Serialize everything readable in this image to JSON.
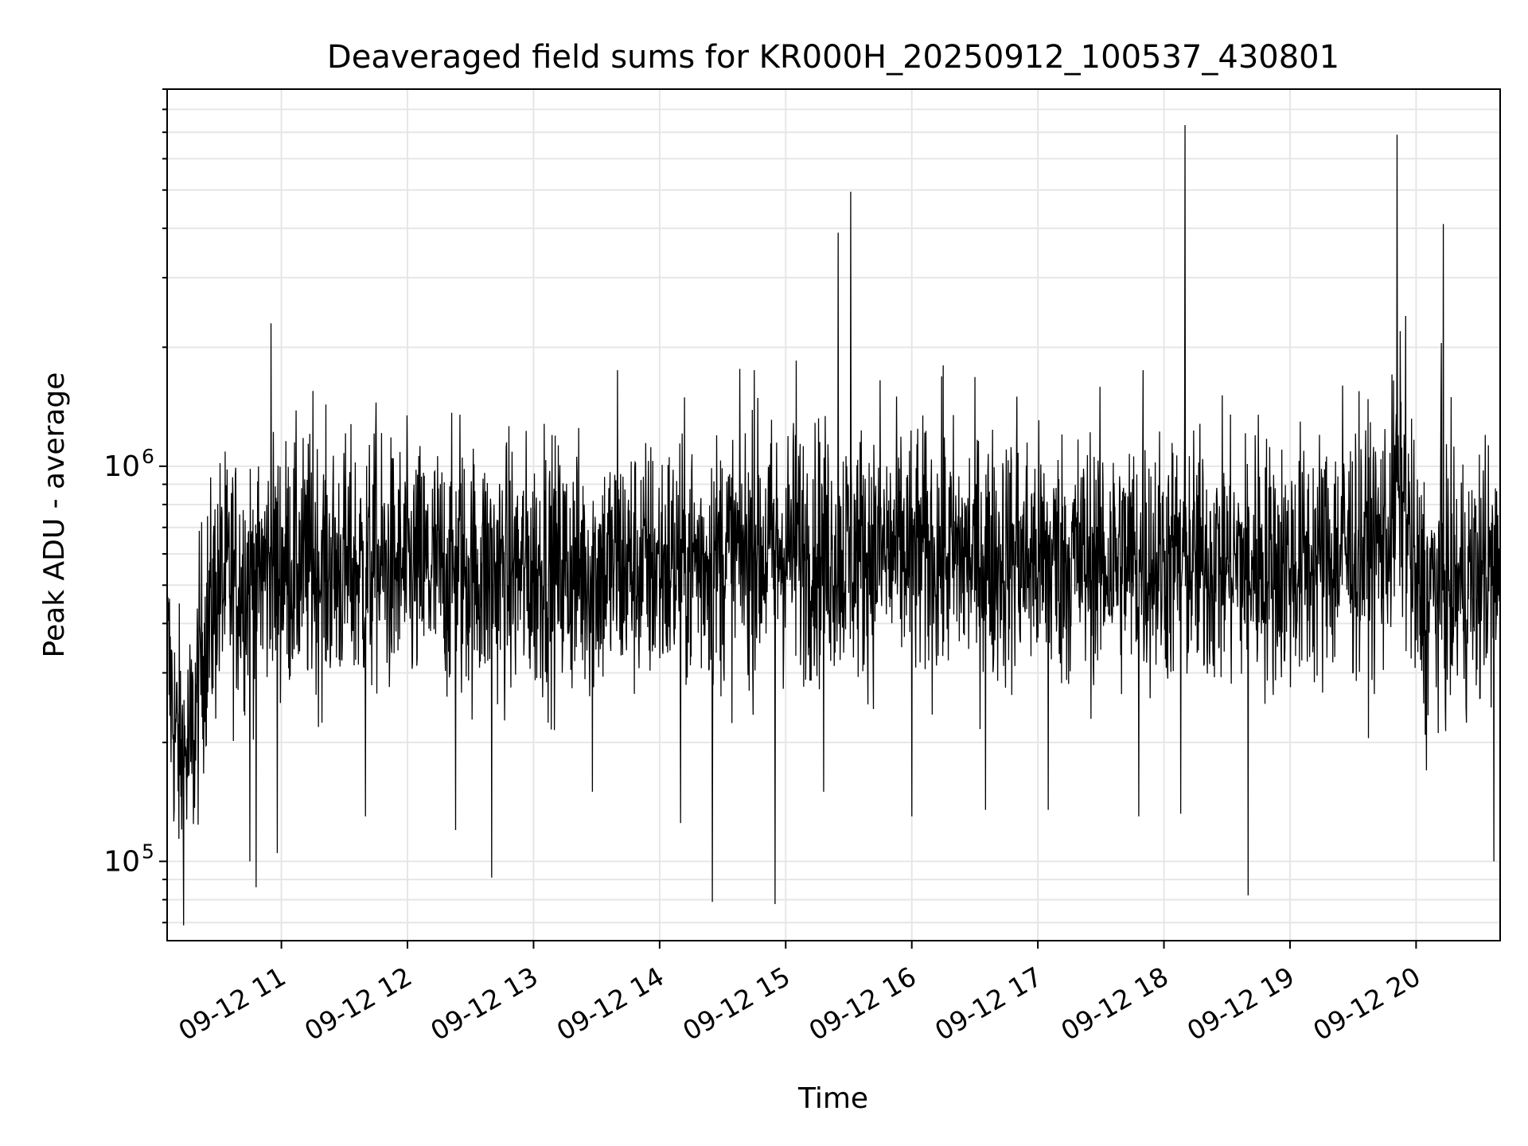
{
  "chart_data": {
    "type": "line",
    "title": "Deaveraged field sums for KR000H_20250912_100537_430801",
    "xlabel": "Time",
    "ylabel": "Peak ADU - average",
    "x_range": [
      "2025-09-12 10:05:37",
      "2025-09-12 20:40:00"
    ],
    "ylim": [
      63000,
      9000000
    ],
    "yscale": "log",
    "grid": true,
    "x_tick_labels": [
      "09-12 11",
      "09-12 12",
      "09-12 13",
      "09-12 14",
      "09-12 15",
      "09-12 16",
      "09-12 17",
      "09-12 18",
      "09-12 19",
      "09-12 20"
    ],
    "y_tick_labels": [
      {
        "value": 100000,
        "base": "10",
        "exp": "5"
      },
      {
        "value": 1000000,
        "base": "10",
        "exp": "6"
      }
    ],
    "line_color": "#000000",
    "series": [
      {
        "baseline_points": [
          [
            "2025-09-12 10:06",
            320000
          ],
          [
            "2025-09-12 10:10",
            200000
          ],
          [
            "2025-09-12 10:14",
            180000
          ],
          [
            "2025-09-12 10:18",
            200000
          ],
          [
            "2025-09-12 10:22",
            340000
          ],
          [
            "2025-09-12 10:30",
            500000
          ],
          [
            "2025-09-12 11:00",
            560000
          ],
          [
            "2025-09-12 12:00",
            540000
          ],
          [
            "2025-09-12 13:00",
            540000
          ],
          [
            "2025-09-12 14:00",
            560000
          ],
          [
            "2025-09-12 15:00",
            620000
          ],
          [
            "2025-09-12 16:00",
            600000
          ],
          [
            "2025-09-12 17:00",
            580000
          ],
          [
            "2025-09-12 18:00",
            580000
          ],
          [
            "2025-09-12 19:00",
            560000
          ],
          [
            "2025-09-12 19:45",
            640000
          ],
          [
            "2025-09-12 19:53",
            900000
          ],
          [
            "2025-09-12 20:00",
            480000
          ],
          [
            "2025-09-12 20:40",
            520000
          ]
        ],
        "peaks": [
          [
            "2025-09-12 10:55",
            2300000
          ],
          [
            "2025-09-12 11:15",
            1550000
          ],
          [
            "2025-09-12 11:45",
            1450000
          ],
          [
            "2025-09-12 12:25",
            1350000
          ],
          [
            "2025-09-12 13:05",
            1280000
          ],
          [
            "2025-09-12 13:40",
            1750000
          ],
          [
            "2025-09-12 14:45",
            1750000
          ],
          [
            "2025-09-12 15:05",
            1850000
          ],
          [
            "2025-09-12 15:25",
            3900000
          ],
          [
            "2025-09-12 15:31",
            4950000
          ],
          [
            "2025-09-12 15:45",
            1650000
          ],
          [
            "2025-09-12 16:15",
            1800000
          ],
          [
            "2025-09-12 16:50",
            1500000
          ],
          [
            "2025-09-12 17:50",
            1750000
          ],
          [
            "2025-09-12 18:10",
            7300000
          ],
          [
            "2025-09-12 18:45",
            1350000
          ],
          [
            "2025-09-12 19:25",
            1600000
          ],
          [
            "2025-09-12 19:51",
            6900000
          ],
          [
            "2025-09-12 19:55",
            2400000
          ],
          [
            "2025-09-12 20:12",
            2050000
          ],
          [
            "2025-09-12 20:13",
            4100000
          ],
          [
            "2025-09-12 20:33",
            1200000
          ]
        ],
        "dips": [
          [
            "2025-09-12 10:45",
            100000
          ],
          [
            "2025-09-12 10:48",
            86000
          ],
          [
            "2025-09-12 10:58",
            105000
          ],
          [
            "2025-09-12 11:40",
            130000
          ],
          [
            "2025-09-12 12:23",
            120000
          ],
          [
            "2025-09-12 12:40",
            91000
          ],
          [
            "2025-09-12 13:28",
            150000
          ],
          [
            "2025-09-12 14:10",
            125000
          ],
          [
            "2025-09-12 14:25",
            79000
          ],
          [
            "2025-09-12 14:55",
            78000
          ],
          [
            "2025-09-12 15:18",
            150000
          ],
          [
            "2025-09-12 16:00",
            130000
          ],
          [
            "2025-09-12 16:35",
            135000
          ],
          [
            "2025-09-12 17:05",
            135000
          ],
          [
            "2025-09-12 17:48",
            130000
          ],
          [
            "2025-09-12 18:08",
            132000
          ],
          [
            "2025-09-12 18:40",
            82000
          ],
          [
            "2025-09-12 20:05",
            170000
          ],
          [
            "2025-09-12 20:37",
            100000
          ]
        ]
      }
    ]
  }
}
